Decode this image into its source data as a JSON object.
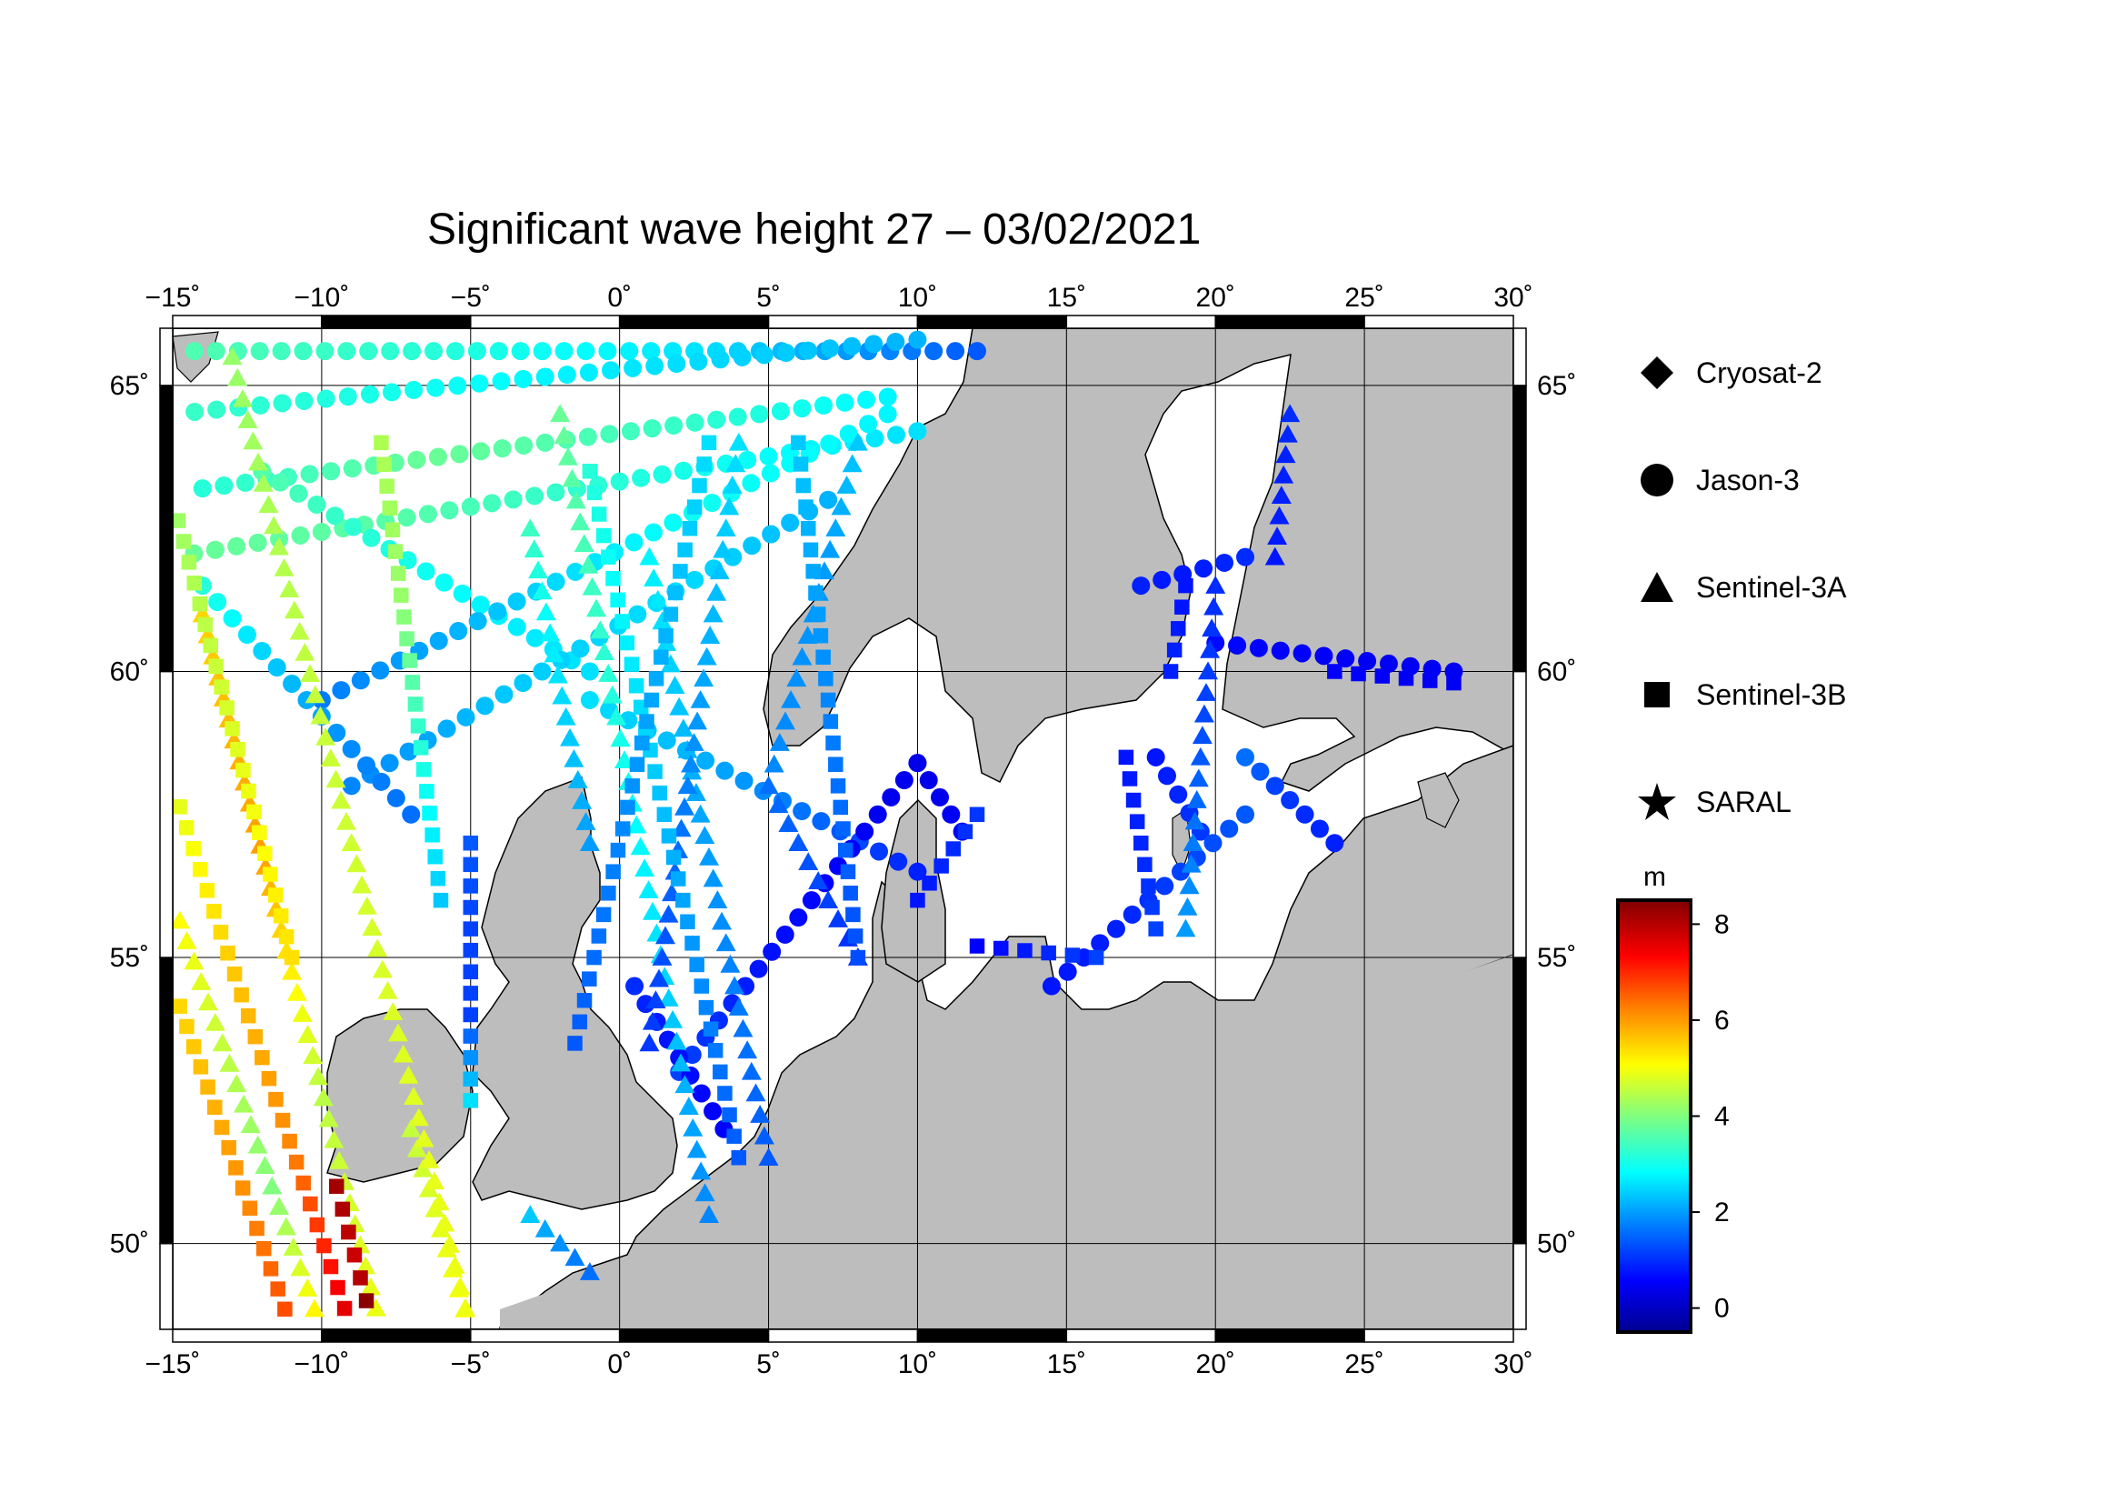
{
  "title": "Significant wave height 27 – 03/02/2021",
  "map": {
    "lon_range": [
      -15,
      30
    ],
    "lat_range": [
      48.5,
      66
    ],
    "lon_ticks": [
      -15,
      -10,
      -5,
      0,
      5,
      10,
      15,
      20,
      25,
      30
    ],
    "lat_ticks": [
      50,
      55,
      60,
      65
    ],
    "lon_labels": [
      "−15˚",
      "−10˚",
      "−5˚",
      "0˚",
      "5˚",
      "10˚",
      "15˚",
      "20˚",
      "25˚",
      "30˚"
    ],
    "lat_labels": [
      "50˚",
      "55˚",
      "60˚",
      "65˚"
    ],
    "grid": true,
    "land_color": "#bdbdbd",
    "sea_color": "#ffffff"
  },
  "legend": {
    "items": [
      {
        "label": "Cryosat-2",
        "symbol": "diamond-icon"
      },
      {
        "label": "Jason-3",
        "symbol": "circle-icon"
      },
      {
        "label": "Sentinel-3A",
        "symbol": "triangle-icon"
      },
      {
        "label": "Sentinel-3B",
        "symbol": "square-icon"
      },
      {
        "label": "SARAL",
        "symbol": "star-icon"
      }
    ]
  },
  "colorbar": {
    "unit": "m",
    "range": [
      -0.5,
      8.5
    ],
    "ticks": [
      0,
      2,
      4,
      6,
      8
    ],
    "tick_labels": [
      "0",
      "2",
      "4",
      "6",
      "8"
    ],
    "colors": [
      "#00008f",
      "#0000ff",
      "#0080ff",
      "#00ffff",
      "#80ff80",
      "#ffff00",
      "#ff8000",
      "#ff0000",
      "#800000"
    ]
  },
  "tracks": [
    {
      "sat": "jason3",
      "start": [
        -15,
        65.6
      ],
      "end": [
        12,
        65.6
      ],
      "hs": [
        3.6,
        3.2,
        2.6,
        1.4
      ]
    },
    {
      "sat": "jason3",
      "start": [
        -15,
        64.5
      ],
      "end": [
        10,
        65.8
      ],
      "hs": [
        3.4,
        3.0,
        2.6,
        2.2
      ]
    },
    {
      "sat": "jason3",
      "start": [
        -14,
        63.2
      ],
      "end": [
        9,
        64.8
      ],
      "hs": [
        3.2,
        3.8,
        3.4,
        2.8
      ]
    },
    {
      "sat": "jason3",
      "start": [
        -15,
        62.0
      ],
      "end": [
        10,
        64.2
      ],
      "hs": [
        3.8,
        3.6,
        3.1,
        2.6
      ]
    },
    {
      "sat": "jason3",
      "start": [
        -12,
        63.5
      ],
      "end": [
        -1,
        60.0
      ],
      "hs": [
        3.6,
        3.2,
        2.8,
        2.6
      ]
    },
    {
      "sat": "jason3",
      "start": [
        -10,
        59.5
      ],
      "end": [
        9,
        64.5
      ],
      "hs": [
        1.7,
        2.4,
        3.0,
        2.8
      ]
    },
    {
      "sat": "jason3",
      "start": [
        -9,
        58.0
      ],
      "end": [
        7,
        63.0
      ],
      "hs": [
        1.8,
        2.4,
        2.6,
        2.2
      ]
    },
    {
      "sat": "jason3",
      "start": [
        -14,
        61.5
      ],
      "end": [
        -7,
        57.5
      ],
      "hs": [
        3.2,
        2.4,
        1.9,
        1.6
      ]
    },
    {
      "sat": "jason3",
      "start": [
        -1,
        59.5
      ],
      "end": [
        10,
        56.5
      ],
      "hs": [
        2.6,
        2.2,
        1.6,
        0.9
      ]
    },
    {
      "sat": "jason3",
      "start": [
        2,
        53.0
      ],
      "end": [
        10,
        58.4
      ],
      "hs": [
        1.2,
        0.8,
        0.6,
        0.4
      ]
    },
    {
      "sat": "jason3",
      "start": [
        0.5,
        54.5
      ],
      "end": [
        3.5,
        52.0
      ],
      "hs": [
        1.0,
        0.8,
        0.7,
        0.6
      ]
    },
    {
      "sat": "jason3",
      "start": [
        10,
        58.4
      ],
      "end": [
        11.5,
        57.2
      ],
      "hs": [
        0.4,
        0.4,
        0.5,
        0.5
      ]
    },
    {
      "sat": "jason3",
      "start": [
        18,
        58.5
      ],
      "end": [
        19.5,
        57.2
      ],
      "hs": [
        0.8,
        0.9,
        1.0,
        1.1
      ]
    },
    {
      "sat": "jason3",
      "start": [
        20,
        60.5
      ],
      "end": [
        28,
        60.0
      ],
      "hs": [
        0.7,
        0.6,
        0.5,
        0.5
      ]
    },
    {
      "sat": "jason3",
      "start": [
        21,
        58.5
      ],
      "end": [
        24,
        57.0
      ],
      "hs": [
        1.6,
        1.2,
        1.0,
        0.9
      ]
    },
    {
      "sat": "jason3",
      "start": [
        14.5,
        54.5
      ],
      "end": [
        21,
        57.5
      ],
      "hs": [
        0.8,
        0.9,
        1.2,
        1.4
      ]
    },
    {
      "sat": "jason3",
      "start": [
        17.5,
        61.5
      ],
      "end": [
        21,
        62.0
      ],
      "hs": [
        0.9,
        0.8,
        0.9,
        1.0
      ]
    },
    {
      "sat": "sentinel3a",
      "start": [
        -14,
        61.0
      ],
      "end": [
        -8,
        48.5
      ],
      "hs": [
        5.5,
        6.0,
        4.5,
        5.0
      ]
    },
    {
      "sat": "sentinel3a",
      "start": [
        -15,
        56.0
      ],
      "end": [
        -10,
        48.5
      ],
      "hs": [
        5.2,
        4.6,
        4.0,
        5.4
      ]
    },
    {
      "sat": "sentinel3a",
      "start": [
        -7,
        52.0
      ],
      "end": [
        -5,
        48.5
      ],
      "hs": [
        4.6,
        4.8,
        5.0,
        5.2
      ]
    },
    {
      "sat": "sentinel3a",
      "start": [
        -13,
        65.5
      ],
      "end": [
        -5,
        48.5
      ],
      "hs": [
        4.2,
        4.6,
        4.8,
        5.0
      ]
    },
    {
      "sat": "sentinel3a",
      "start": [
        -2,
        64.5
      ],
      "end": [
        3,
        50.5
      ],
      "hs": [
        3.8,
        3.2,
        2.6,
        1.8
      ]
    },
    {
      "sat": "sentinel3a",
      "start": [
        1,
        62.0
      ],
      "end": [
        5,
        51.5
      ],
      "hs": [
        2.8,
        2.2,
        1.8,
        1.4
      ]
    },
    {
      "sat": "sentinel3a",
      "start": [
        -3,
        62.5
      ],
      "end": [
        -1,
        57.0
      ],
      "hs": [
        3.4,
        2.8,
        2.4,
        2.0
      ]
    },
    {
      "sat": "sentinel3a",
      "start": [
        4,
        64.0
      ],
      "end": [
        1,
        53.5
      ],
      "hs": [
        2.6,
        2.2,
        1.6,
        1.1
      ]
    },
    {
      "sat": "sentinel3a",
      "start": [
        8,
        64.0
      ],
      "end": [
        5,
        58.0
      ],
      "hs": [
        2.4,
        2.0,
        1.9,
        1.8
      ]
    },
    {
      "sat": "sentinel3a",
      "start": [
        5,
        58.0
      ],
      "end": [
        8,
        55.0
      ],
      "hs": [
        1.6,
        1.4,
        1.2,
        1.0
      ]
    },
    {
      "sat": "sentinel3a",
      "start": [
        20,
        61.5
      ],
      "end": [
        19,
        55.5
      ],
      "hs": [
        1.0,
        1.2,
        1.6,
        2.0
      ]
    },
    {
      "sat": "sentinel3a",
      "start": [
        22.5,
        64.5
      ],
      "end": [
        22,
        62.0
      ],
      "hs": [
        1.0,
        0.9,
        0.9,
        0.8
      ]
    },
    {
      "sat": "sentinel3a",
      "start": [
        -3,
        50.5
      ],
      "end": [
        -1,
        49.5
      ],
      "hs": [
        2.4,
        2.0,
        1.8,
        1.6
      ]
    },
    {
      "sat": "sentinel3b",
      "start": [
        -15,
        58.0
      ],
      "end": [
        -9,
        48.5
      ],
      "hs": [
        4.8,
        5.6,
        6.2,
        7.8
      ]
    },
    {
      "sat": "sentinel3b",
      "start": [
        -15,
        54.5
      ],
      "end": [
        -11,
        48.5
      ],
      "hs": [
        5.4,
        5.8,
        6.2,
        6.8
      ]
    },
    {
      "sat": "sentinel3b",
      "start": [
        -15,
        63.0
      ],
      "end": [
        -11,
        55.0
      ],
      "hs": [
        4.2,
        4.6,
        5.0,
        5.4
      ]
    },
    {
      "sat": "sentinel3b",
      "start": [
        -8,
        64.0
      ],
      "end": [
        -6,
        56.0
      ],
      "hs": [
        4.4,
        4.2,
        3.2,
        2.4
      ]
    },
    {
      "sat": "sentinel3b",
      "start": [
        -5,
        57.0
      ],
      "end": [
        -5,
        52.5
      ],
      "hs": [
        1.4,
        1.2,
        1.2,
        2.6
      ]
    },
    {
      "sat": "sentinel3b",
      "start": [
        -1,
        63.5
      ],
      "end": [
        4,
        51.5
      ],
      "hs": [
        3.2,
        2.6,
        2.0,
        1.4
      ]
    },
    {
      "sat": "sentinel3b",
      "start": [
        3,
        64.0
      ],
      "end": [
        -1.5,
        53.5
      ],
      "hs": [
        2.6,
        2.2,
        1.8,
        1.4
      ]
    },
    {
      "sat": "sentinel3b",
      "start": [
        6,
        64.0
      ],
      "end": [
        8,
        55.0
      ],
      "hs": [
        2.4,
        2.0,
        1.6,
        1.3
      ]
    },
    {
      "sat": "sentinel3b",
      "start": [
        10,
        56.0
      ],
      "end": [
        12,
        57.5
      ],
      "hs": [
        0.8,
        0.9,
        1.0,
        1.1
      ]
    },
    {
      "sat": "sentinel3b",
      "start": [
        12,
        55.2
      ],
      "end": [
        16,
        55.0
      ],
      "hs": [
        0.6,
        0.8,
        1.0,
        1.2
      ]
    },
    {
      "sat": "sentinel3b",
      "start": [
        17,
        58.5
      ],
      "end": [
        18,
        55.5
      ],
      "hs": [
        0.8,
        0.9,
        1.0,
        1.2
      ]
    },
    {
      "sat": "sentinel3b",
      "start": [
        19,
        61.5
      ],
      "end": [
        18.5,
        60.0
      ],
      "hs": [
        0.8,
        0.8,
        0.9,
        0.9
      ]
    },
    {
      "sat": "sentinel3b",
      "start": [
        -9.5,
        51.0
      ],
      "end": [
        -8.5,
        49.0
      ],
      "hs": [
        8.2,
        8.0,
        7.8,
        8.4
      ]
    },
    {
      "sat": "sentinel3b",
      "start": [
        24,
        60.0
      ],
      "end": [
        28,
        59.8
      ],
      "hs": [
        0.6,
        0.6,
        0.5,
        0.5
      ]
    }
  ]
}
